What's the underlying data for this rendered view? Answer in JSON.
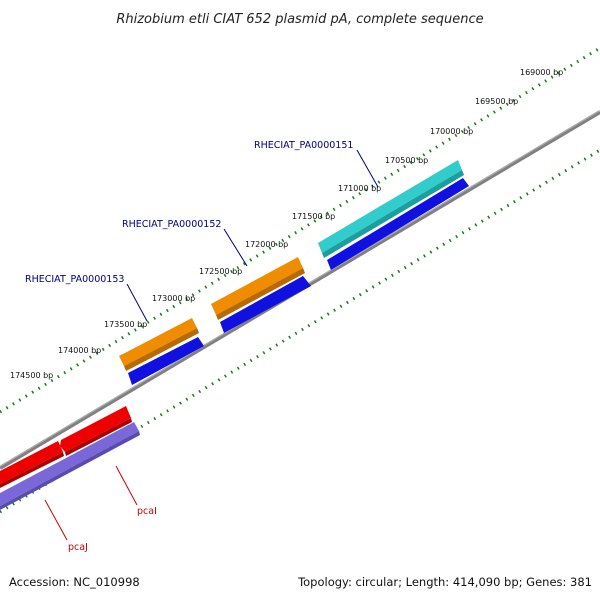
{
  "title": "Rhizobium etli CIAT 652 plasmid pA, complete sequence",
  "footer": {
    "accession": "Accession: NC_010998",
    "summary": "Topology: circular; Length: 414,090 bp; Genes: 381"
  },
  "ticks": [
    "169000 bp",
    "169500 bp",
    "170000 bp",
    "170500 bp",
    "171000 bp",
    "171500 bp",
    "172000 bp",
    "172500 bp",
    "173000 bp",
    "173500 bp",
    "174000 bp",
    "174500 bp"
  ],
  "gene_labels": [
    {
      "text": "RHECIAT_PA0000151",
      "color": "#000080"
    },
    {
      "text": "RHECIAT_PA0000152",
      "color": "#000080"
    },
    {
      "text": "RHECIAT_PA0000153",
      "color": "#000080"
    },
    {
      "text": "pcaI",
      "color": "#cc0000"
    },
    {
      "text": "pcaJ",
      "color": "#cc0000"
    }
  ],
  "colors": {
    "backbone": "#808080",
    "tick_dots": "#1a7a1a",
    "cyan_gene": "#33cccc",
    "orange_gene": "#f08c00",
    "blue_cds": "#1010e0",
    "red_gene": "#ee0000",
    "purple_cds": "#7b68d8"
  }
}
